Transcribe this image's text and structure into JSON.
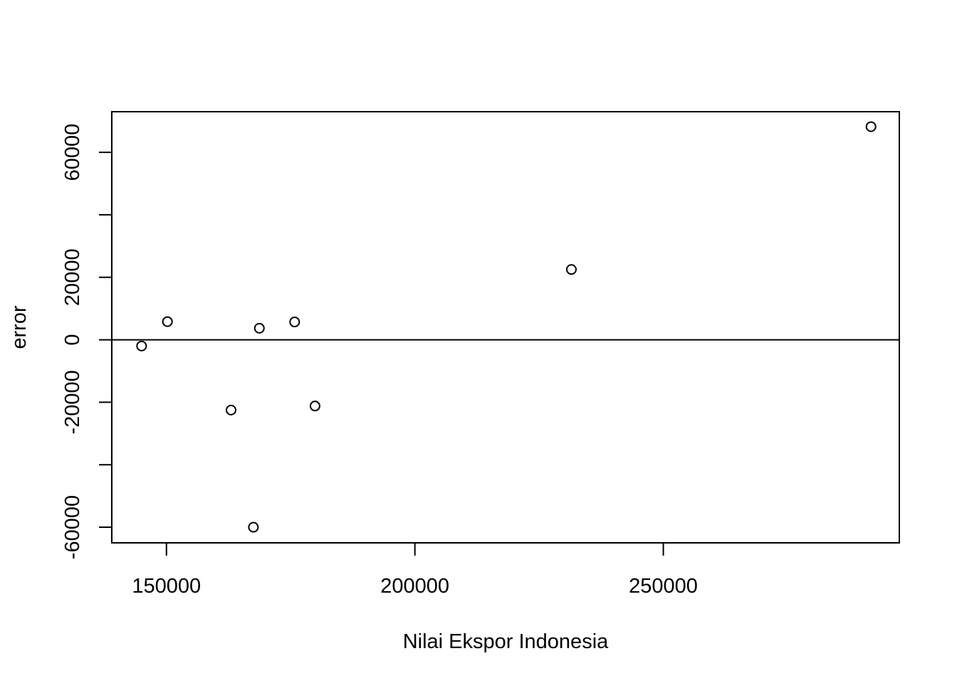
{
  "chart_data": {
    "type": "scatter",
    "title": "",
    "xlabel": "Nilai Ekspor Indonesia",
    "ylabel": "error",
    "xlim": [
      139000,
      297500
    ],
    "ylim": [
      -65000,
      73000
    ],
    "x_ticks": [
      150000,
      200000,
      250000
    ],
    "x_tick_labels": [
      "150000",
      "200000",
      "250000"
    ],
    "y_ticks": [
      -60000,
      -40000,
      -20000,
      0,
      20000,
      40000,
      60000
    ],
    "y_tick_labels": [
      "-60000",
      "",
      "-20000",
      "0",
      "20000",
      "",
      "60000"
    ],
    "reference_line_y": 0,
    "grid": false,
    "legend": "none",
    "points": [
      {
        "x": 145000,
        "y": -2000
      },
      {
        "x": 150200,
        "y": 5800
      },
      {
        "x": 163000,
        "y": -22500
      },
      {
        "x": 167500,
        "y": -60000
      },
      {
        "x": 168700,
        "y": 3700
      },
      {
        "x": 175800,
        "y": 5700
      },
      {
        "x": 179900,
        "y": -21200
      },
      {
        "x": 231500,
        "y": 22500
      },
      {
        "x": 291800,
        "y": 68200
      }
    ]
  }
}
